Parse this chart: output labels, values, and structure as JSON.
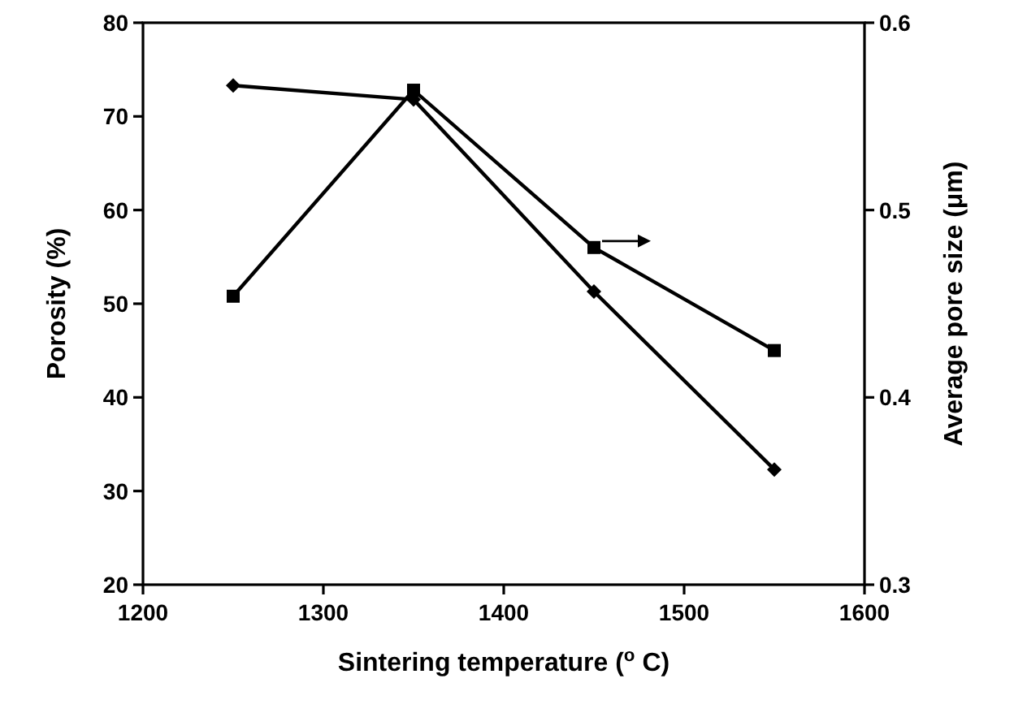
{
  "chart_data": {
    "type": "line",
    "xlabel": "Sintering temperature ($^{o}$ C)",
    "ylabel": "Porosity (%)",
    "y2label": "Average pore size (μm)",
    "x": [
      1250,
      1350,
      1450,
      1550
    ],
    "series": [
      {
        "color": "#000000",
        "marker": "diamond",
        "values": [
          73.3,
          71.8,
          51.3,
          32.3
        ]
      },
      {
        "color": "#000000",
        "marker": "square",
        "axis": "y2",
        "values": [
          0.454,
          0.564,
          0.48,
          0.425
        ]
      }
    ],
    "xlim": [
      1200,
      1600
    ],
    "xticks": [
      1200,
      1300,
      1400,
      1500,
      1600
    ],
    "ylim": [
      20,
      80
    ],
    "yticks": [
      20,
      30,
      40,
      50,
      60,
      70,
      80
    ],
    "y2lim": [
      0.3,
      0.6
    ],
    "y2ticks": [
      0.3,
      0.4,
      0.5,
      0.6
    ],
    "line_style": "solid"
  }
}
